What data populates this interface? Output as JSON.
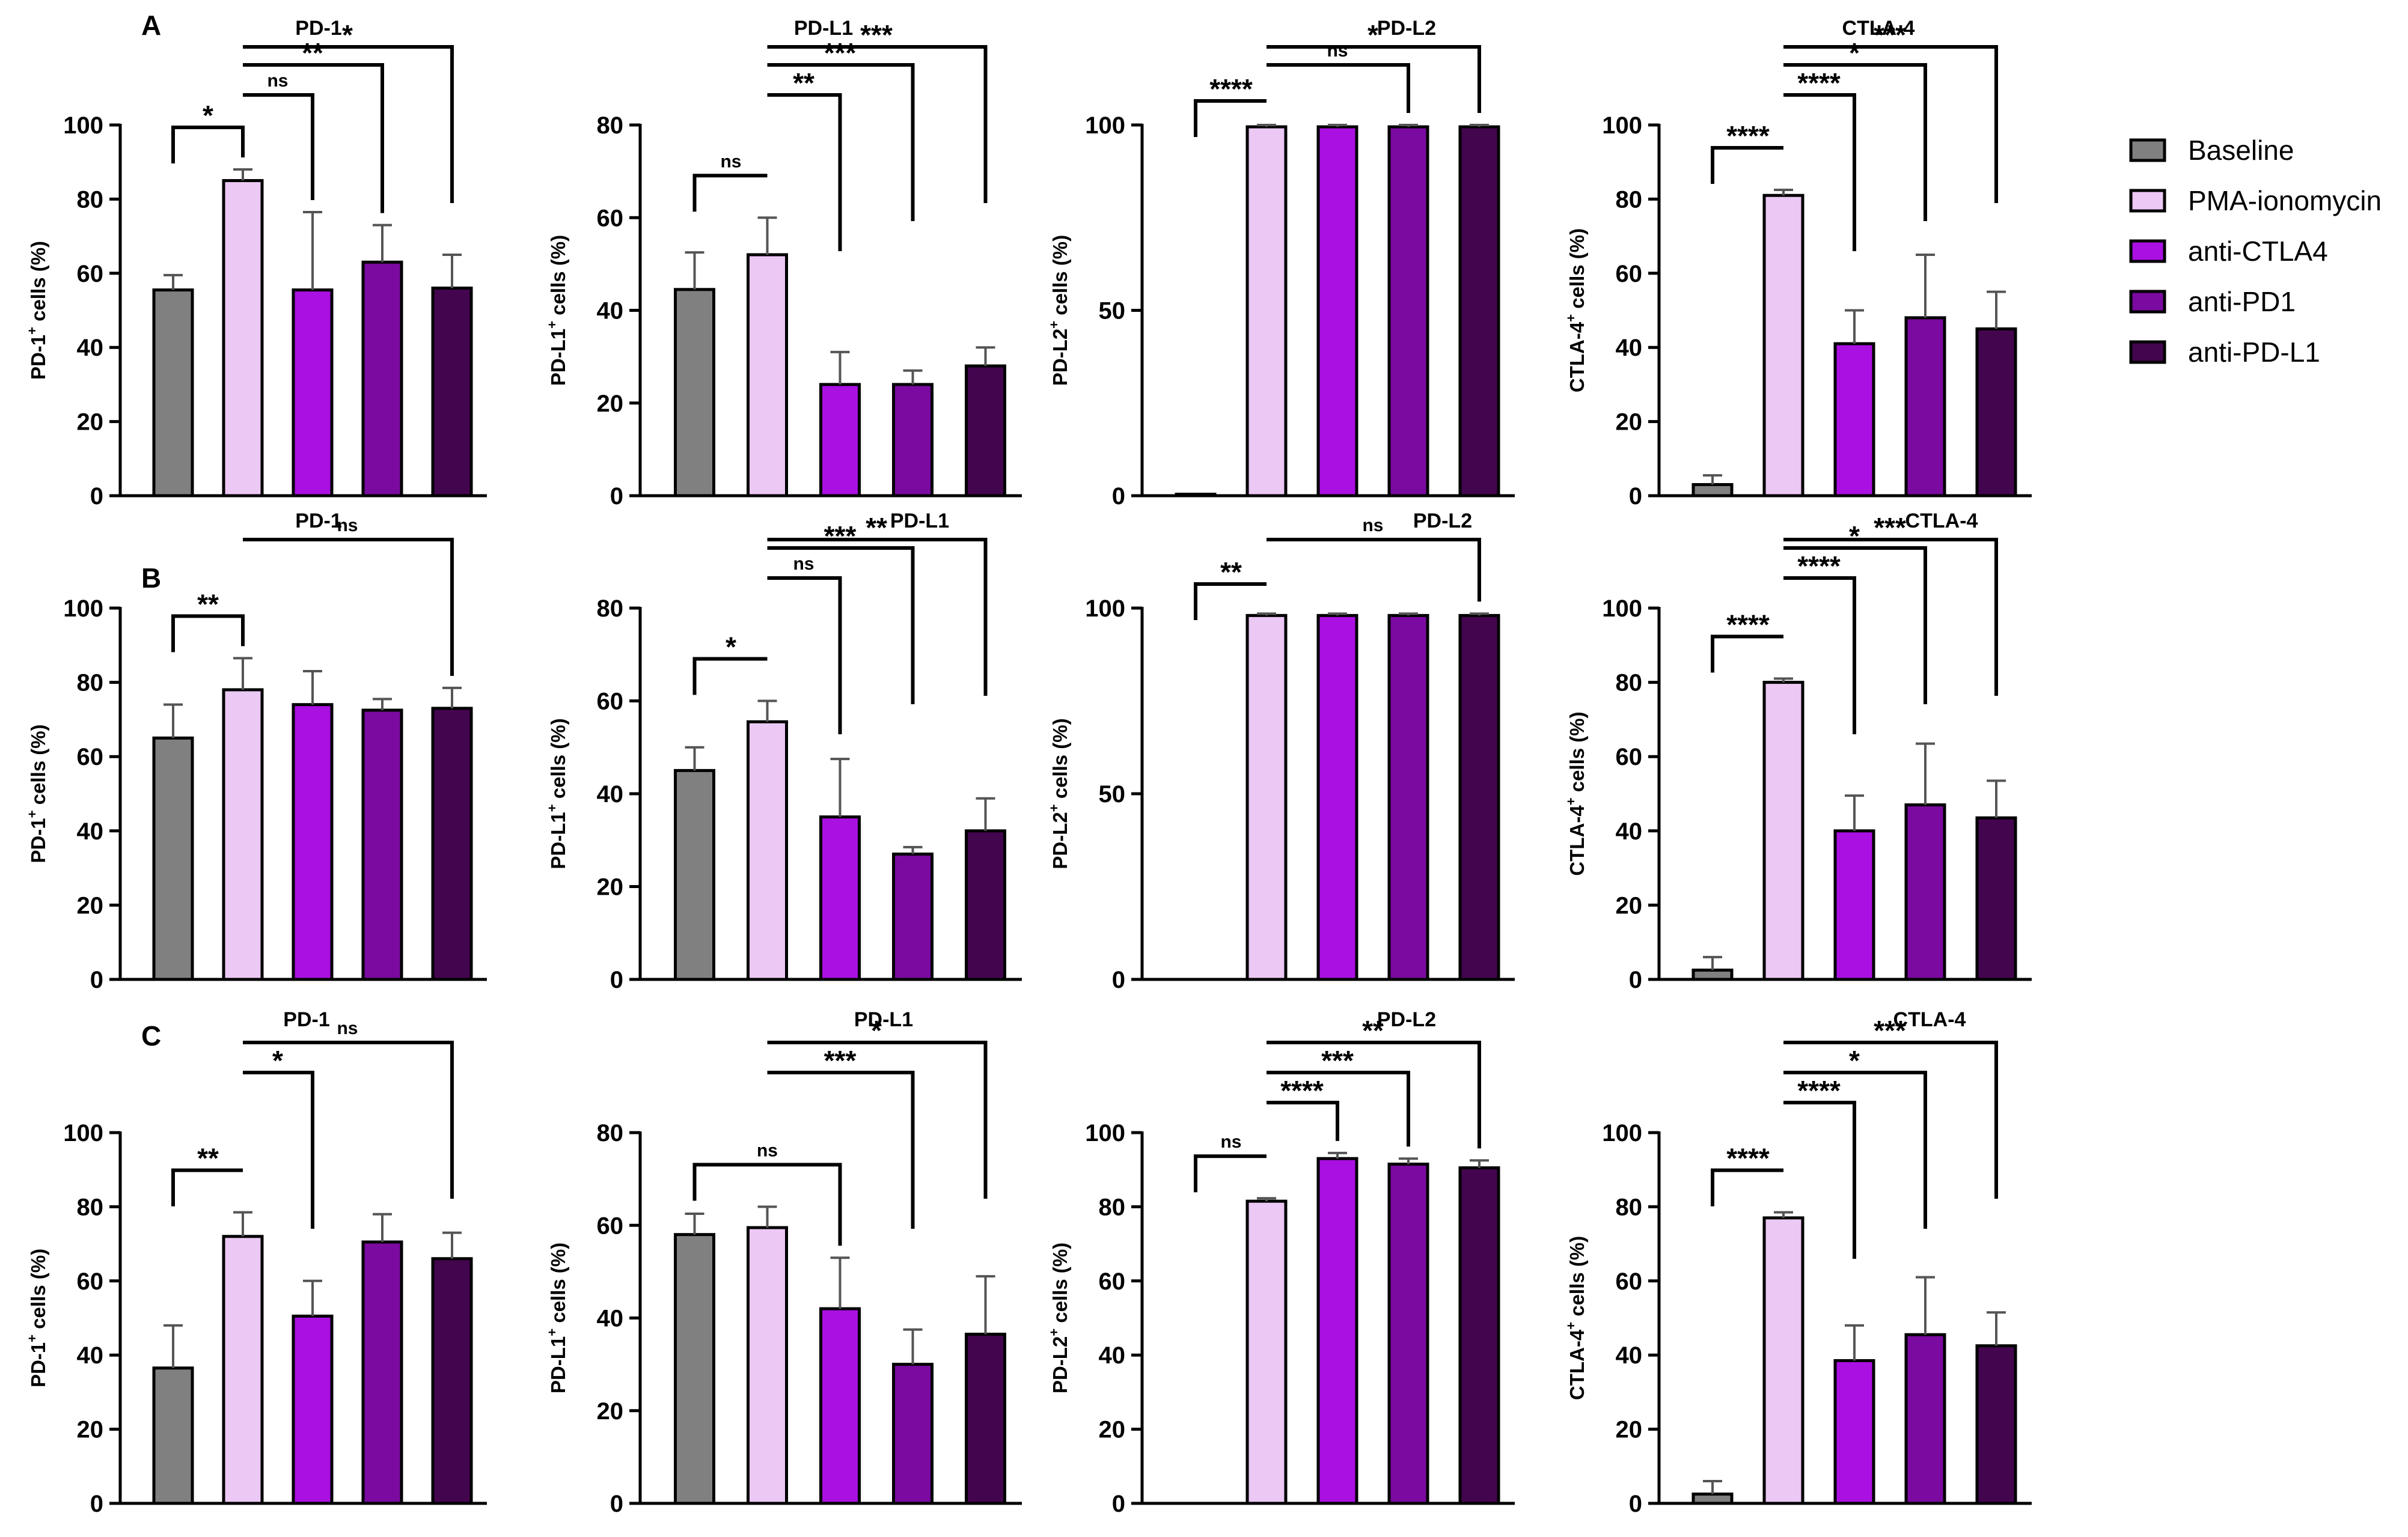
{
  "groups": [
    "Baseline",
    "PMA-ionomycin",
    "anti-CTLA4",
    "anti-PD1",
    "anti-PD-L1"
  ],
  "colors": {
    "Baseline": "#808080",
    "PMA-ionomycin": "#ecc8f5",
    "anti-CTLA4": "#aa10e2",
    "anti-PD1": "#7a0aa0",
    "anti-PD-L1": "#44054f"
  },
  "row_labels": [
    "A",
    "B",
    "C"
  ],
  "chart_data": [
    {
      "type": "bar",
      "row": "A",
      "title": "PD-1",
      "ylabel": "PD-1",
      "ylim": [
        0,
        100
      ],
      "yticks": [
        0,
        20,
        40,
        60,
        80,
        100
      ],
      "values": [
        55.5,
        85,
        55.5,
        63,
        56
      ],
      "errors": [
        4,
        3,
        21,
        10,
        9
      ],
      "brackets": [
        {
          "from": 0,
          "to": 1,
          "label": "*",
          "down": [
            1,
            1
          ]
        },
        {
          "from": 1,
          "to": 2,
          "label": "ns",
          "down": [
            0,
            1
          ]
        },
        {
          "from": 1,
          "to": 3,
          "label": "**",
          "down": [
            0,
            1
          ]
        },
        {
          "from": 1,
          "to": 4,
          "label": "*",
          "down": [
            0,
            1
          ]
        }
      ]
    },
    {
      "type": "bar",
      "row": "A",
      "title": "PD-L1",
      "ylabel": "PD-L1",
      "ylim": [
        0,
        80
      ],
      "yticks": [
        0,
        20,
        40,
        60,
        80
      ],
      "values": [
        44.5,
        52,
        24,
        24,
        28
      ],
      "errors": [
        8,
        8,
        7,
        3,
        4
      ],
      "brackets": [
        {
          "from": 0,
          "to": 1,
          "label": "ns",
          "down": [
            1,
            0
          ]
        },
        {
          "from": 1,
          "to": 2,
          "label": "**",
          "down": [
            0,
            1
          ]
        },
        {
          "from": 1,
          "to": 3,
          "label": "***",
          "down": [
            0,
            1
          ]
        },
        {
          "from": 1,
          "to": 4,
          "label": "***",
          "down": [
            0,
            1
          ]
        }
      ]
    },
    {
      "type": "bar",
      "row": "A",
      "title": "PD-L2",
      "ylabel": "PD-L2",
      "ylim": [
        0,
        100
      ],
      "yticks": [
        0,
        50,
        100
      ],
      "values": [
        0.4,
        99.5,
        99.5,
        99.5,
        99.5
      ],
      "errors": [
        0,
        0.5,
        0.5,
        0.5,
        0.5
      ],
      "brackets": [
        {
          "from": 0,
          "to": 1,
          "label": "****",
          "down": [
            1,
            0
          ]
        },
        {
          "from": 1,
          "to": 3,
          "label": "ns",
          "down": [
            0,
            1
          ]
        },
        {
          "from": 1,
          "to": 4,
          "label": "*",
          "down": [
            0,
            1
          ]
        }
      ]
    },
    {
      "type": "bar",
      "row": "A",
      "title": "CTLA-4",
      "ylabel": "CTLA-4",
      "ylim": [
        0,
        100
      ],
      "yticks": [
        0,
        20,
        40,
        60,
        80,
        100
      ],
      "values": [
        3,
        81,
        41,
        48,
        45
      ],
      "errors": [
        2.5,
        1.5,
        9,
        17,
        10
      ],
      "brackets": [
        {
          "from": 0,
          "to": 1,
          "label": "****",
          "down": [
            1,
            0
          ]
        },
        {
          "from": 1,
          "to": 2,
          "label": "****",
          "down": [
            0,
            1
          ]
        },
        {
          "from": 1,
          "to": 3,
          "label": "*",
          "down": [
            0,
            1
          ]
        },
        {
          "from": 1,
          "to": 4,
          "label": "***",
          "down": [
            0,
            1
          ]
        }
      ]
    },
    {
      "type": "bar",
      "row": "B",
      "title": "PD-1",
      "ylabel": "PD-1",
      "ylim": [
        0,
        100
      ],
      "yticks": [
        0,
        20,
        40,
        60,
        80,
        100
      ],
      "values": [
        65,
        78,
        74,
        72.5,
        73
      ],
      "errors": [
        9,
        8.5,
        9,
        3,
        5.5
      ],
      "brackets": [
        {
          "from": 0,
          "to": 1,
          "label": "**",
          "down": [
            1,
            1
          ]
        },
        {
          "from": 1,
          "to": 4,
          "label": "ns",
          "down": [
            0,
            1
          ]
        }
      ]
    },
    {
      "type": "bar",
      "row": "B",
      "title": "PD-L1",
      "ylabel": "PD-L1",
      "ylim": [
        0,
        80
      ],
      "yticks": [
        0,
        20,
        40,
        60,
        80
      ],
      "values": [
        45,
        55.5,
        35,
        27,
        32
      ],
      "errors": [
        5,
        4.5,
        12.5,
        1.5,
        7
      ],
      "brackets": [
        {
          "from": 0,
          "to": 1,
          "label": "*",
          "down": [
            1,
            0
          ]
        },
        {
          "from": 1,
          "to": 2,
          "label": "ns",
          "down": [
            0,
            1
          ]
        },
        {
          "from": 1,
          "to": 3,
          "label": "***",
          "down": [
            0,
            1
          ]
        },
        {
          "from": 1,
          "to": 4,
          "label": "**",
          "down": [
            0,
            1
          ]
        }
      ]
    },
    {
      "type": "bar",
      "row": "B",
      "title": "PD-L2",
      "ylabel": "PD-L2",
      "ylim": [
        0,
        100
      ],
      "yticks": [
        0,
        50,
        100
      ],
      "values": [
        0,
        98,
        98,
        98,
        98
      ],
      "errors": [
        0,
        0.5,
        0.5,
        0.5,
        0.5
      ],
      "brackets": [
        {
          "from": 0,
          "to": 1,
          "label": "**",
          "down": [
            1,
            0
          ]
        },
        {
          "from": 1,
          "to": 4,
          "label": "ns",
          "down": [
            0,
            1
          ]
        }
      ]
    },
    {
      "type": "bar",
      "row": "B",
      "title": "CTLA-4",
      "ylabel": "CTLA-4",
      "ylim": [
        0,
        100
      ],
      "yticks": [
        0,
        20,
        40,
        60,
        80,
        100
      ],
      "values": [
        2.5,
        80,
        40,
        47,
        43.5
      ],
      "errors": [
        3.5,
        1,
        9.5,
        16.5,
        10
      ],
      "brackets": [
        {
          "from": 0,
          "to": 1,
          "label": "****",
          "down": [
            1,
            0
          ]
        },
        {
          "from": 1,
          "to": 2,
          "label": "****",
          "down": [
            0,
            1
          ]
        },
        {
          "from": 1,
          "to": 3,
          "label": "*",
          "down": [
            0,
            1
          ]
        },
        {
          "from": 1,
          "to": 4,
          "label": "***",
          "down": [
            0,
            1
          ]
        }
      ]
    },
    {
      "type": "bar",
      "row": "C",
      "title": "PD-1",
      "ylabel": "PD-1",
      "ylim": [
        0,
        100
      ],
      "yticks": [
        0,
        20,
        40,
        60,
        80,
        100
      ],
      "values": [
        36.5,
        72,
        50.5,
        70.5,
        66
      ],
      "errors": [
        11.5,
        6.5,
        9.5,
        7.5,
        7
      ],
      "brackets": [
        {
          "from": 0,
          "to": 1,
          "label": "**",
          "down": [
            1,
            0
          ]
        },
        {
          "from": 1,
          "to": 2,
          "label": "*",
          "down": [
            0,
            1
          ]
        },
        {
          "from": 1,
          "to": 4,
          "label": "ns",
          "down": [
            0,
            1
          ]
        }
      ]
    },
    {
      "type": "bar",
      "row": "C",
      "title": "PD-L1",
      "ylabel": "PD-L1",
      "ylim": [
        0,
        80
      ],
      "yticks": [
        0,
        20,
        40,
        60,
        80
      ],
      "values": [
        58,
        59.5,
        42,
        30,
        36.5
      ],
      "errors": [
        4.5,
        4.5,
        11,
        7.5,
        12.5
      ],
      "brackets": [
        {
          "from": 0,
          "to": 2,
          "label": "ns",
          "down": [
            1,
            1
          ]
        },
        {
          "from": 1,
          "to": 3,
          "label": "***",
          "down": [
            0,
            1
          ]
        },
        {
          "from": 1,
          "to": 4,
          "label": "*",
          "down": [
            0,
            1
          ]
        }
      ]
    },
    {
      "type": "bar",
      "row": "C",
      "title": "PD-L2",
      "ylabel": "PD-L2",
      "ylim": [
        0,
        100
      ],
      "yticks": [
        0,
        20,
        40,
        60,
        80,
        100
      ],
      "values": [
        0,
        81.5,
        93,
        91.5,
        90.5
      ],
      "errors": [
        0,
        0.8,
        1.5,
        1.5,
        2
      ],
      "brackets": [
        {
          "from": 0,
          "to": 1,
          "label": "ns",
          "down": [
            1,
            0
          ]
        },
        {
          "from": 1,
          "to": 2,
          "label": "****",
          "down": [
            0,
            1
          ]
        },
        {
          "from": 1,
          "to": 3,
          "label": "***",
          "down": [
            0,
            1
          ]
        },
        {
          "from": 1,
          "to": 4,
          "label": "**",
          "down": [
            0,
            1
          ]
        }
      ]
    },
    {
      "type": "bar",
      "row": "C",
      "title": "CTLA-4",
      "ylabel": "CTLA-4",
      "ylim": [
        0,
        100
      ],
      "yticks": [
        0,
        20,
        40,
        60,
        80,
        100
      ],
      "values": [
        2.5,
        77,
        38.5,
        45.5,
        42.5
      ],
      "errors": [
        3.5,
        1.5,
        9.5,
        15.5,
        9
      ],
      "brackets": [
        {
          "from": 0,
          "to": 1,
          "label": "****",
          "down": [
            1,
            0
          ]
        },
        {
          "from": 1,
          "to": 2,
          "label": "****",
          "down": [
            0,
            1
          ]
        },
        {
          "from": 1,
          "to": 3,
          "label": "*",
          "down": [
            0,
            1
          ]
        },
        {
          "from": 1,
          "to": 4,
          "label": "***",
          "down": [
            0,
            1
          ]
        }
      ]
    }
  ]
}
